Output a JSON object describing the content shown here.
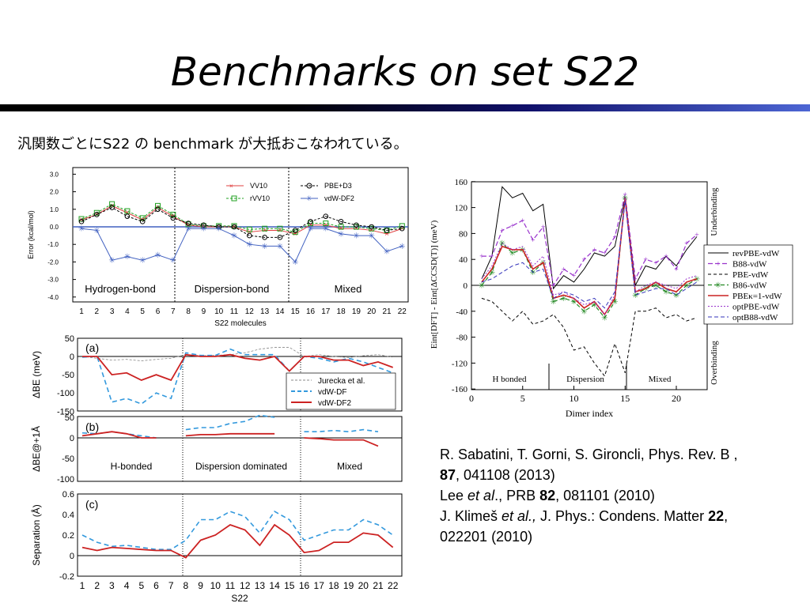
{
  "slide": {
    "title": "Benchmarks on set S22",
    "subtitle": "汎関数ごとにS22 の benchmark が大抵おこなわれている。"
  },
  "figure1": {
    "ylabel": "Error (kcal/mol)",
    "xlabel": "S22 molecules",
    "yticks": [
      "3.0",
      "2.0",
      "1.0",
      "0.0",
      "-1.0",
      "-2.0",
      "-3.0",
      "-4.0"
    ],
    "xticks": [
      "1",
      "2",
      "3",
      "4",
      "5",
      "6",
      "7",
      "8",
      "9",
      "10",
      "11",
      "12",
      "13",
      "14",
      "15",
      "16",
      "17",
      "18",
      "19",
      "20",
      "21",
      "22"
    ],
    "regions": [
      "Hydrogen-bond",
      "Dispersion-bond",
      "Mixed"
    ],
    "legend": [
      "VV10",
      "rVV10",
      "PBE+D3",
      "vdW-DF2"
    ]
  },
  "figure2": {
    "panel_a": {
      "tag": "(a)",
      "ylabel": "ΔBE (meV)",
      "yticks": [
        "50",
        "0",
        "-50",
        "-100",
        "-150"
      ]
    },
    "panel_b": {
      "tag": "(b)",
      "ylabel": "ΔBE@+1Å",
      "yticks": [
        "50",
        "0",
        "-50",
        "-100"
      ],
      "regions": [
        "H-bonded",
        "Dispersion dominated",
        "Mixed"
      ]
    },
    "panel_c": {
      "tag": "(c)",
      "ylabel": "Separation (Å)",
      "yticks": [
        "0.6",
        "0.4",
        "0.2",
        "0",
        "-0.2"
      ]
    },
    "xlabel": "S22",
    "xticks": [
      "1",
      "2",
      "3",
      "4",
      "5",
      "6",
      "7",
      "8",
      "9",
      "10",
      "11",
      "12",
      "13",
      "14",
      "15",
      "16",
      "17",
      "18",
      "19",
      "20",
      "21",
      "22"
    ],
    "legend": [
      "Jurecka et al.",
      "vdW-DF",
      "vdW-DF2"
    ]
  },
  "figure3": {
    "ylabel": "Eint[DFT] - Eint[ΔCCSD(T)] (meV)",
    "xlabel": "Dimer index",
    "yticks": [
      "160",
      "120",
      "80",
      "40",
      "0",
      "-40",
      "-80",
      "-120",
      "-160"
    ],
    "xticks": [
      "0",
      "5",
      "10",
      "15",
      "20"
    ],
    "regions": [
      "H bonded",
      "Dispersion",
      "Mixed"
    ],
    "side_top": "Underbinding",
    "side_bottom": "Overbinding",
    "legend": [
      "revPBE-vdW",
      "B88-vdW",
      "PBE-vdW",
      "B86-vdW",
      "PBEκ=1-vdW",
      "optPBE-vdW",
      "optB88-vdW"
    ]
  },
  "chart_data": [
    {
      "type": "line",
      "xlabel": "S22 molecules",
      "ylabel": "Error (kcal/mol)",
      "ylim": [
        -4,
        3.2
      ],
      "x": [
        1,
        2,
        3,
        4,
        5,
        6,
        7,
        8,
        9,
        10,
        11,
        12,
        13,
        14,
        15,
        16,
        17,
        18,
        19,
        20,
        21,
        22
      ],
      "series": [
        {
          "name": "VV10",
          "color": "#e04040",
          "values": [
            0.4,
            0.7,
            1.2,
            0.8,
            0.4,
            1.1,
            0.6,
            0.1,
            0.0,
            0.0,
            0.0,
            -0.3,
            -0.2,
            -0.2,
            -0.4,
            0.1,
            0.1,
            -0.1,
            -0.1,
            -0.2,
            -0.4,
            -0.1
          ]
        },
        {
          "name": "rVV10",
          "color": "#20a020",
          "values": [
            0.45,
            0.8,
            1.3,
            0.9,
            0.5,
            1.2,
            0.7,
            0.15,
            0.05,
            0.05,
            0.05,
            -0.15,
            -0.1,
            -0.1,
            -0.3,
            0.2,
            0.2,
            0.0,
            0.0,
            -0.1,
            -0.2,
            0.05
          ]
        },
        {
          "name": "PBE+D3",
          "color": "#000000",
          "values": [
            0.3,
            0.7,
            1.1,
            0.6,
            0.3,
            1.0,
            0.5,
            0.2,
            0.1,
            0.0,
            0.0,
            -0.5,
            -0.6,
            -0.6,
            -0.2,
            0.3,
            0.6,
            0.3,
            0.1,
            0.0,
            -0.2,
            -0.1
          ]
        },
        {
          "name": "vdW-DF2",
          "color": "#4060c0",
          "values": [
            -0.1,
            -0.2,
            -1.9,
            -1.7,
            -1.9,
            -1.6,
            -1.9,
            -0.1,
            -0.1,
            -0.1,
            -0.5,
            -1.0,
            -1.1,
            -1.1,
            -2.0,
            -0.1,
            -0.1,
            -0.4,
            -0.5,
            -0.5,
            -1.4,
            -1.1
          ]
        }
      ]
    },
    {
      "type": "line",
      "ylabel": "ΔBE (meV)",
      "ylim": [
        -150,
        50
      ],
      "x": [
        1,
        2,
        3,
        4,
        5,
        6,
        7,
        8,
        9,
        10,
        11,
        12,
        13,
        14,
        15,
        16,
        17,
        18,
        19,
        20,
        21,
        22
      ],
      "series": [
        {
          "name": "Jurecka et al.",
          "color": "#888888",
          "values": [
            0,
            -5,
            -10,
            -8,
            -12,
            -8,
            -5,
            5,
            2,
            3,
            5,
            10,
            20,
            25,
            25,
            0,
            5,
            0,
            -3,
            2,
            5,
            -2
          ]
        },
        {
          "name": "vdW-DF",
          "color": "#3399dd",
          "values": [
            -2,
            0,
            -125,
            -115,
            -130,
            -100,
            -115,
            10,
            3,
            3,
            20,
            5,
            5,
            5,
            -40,
            0,
            -5,
            -15,
            -5,
            -15,
            -30,
            -45
          ]
        },
        {
          "name": "vdW-DF2",
          "color": "#cc2222",
          "values": [
            0,
            0,
            -50,
            -45,
            -65,
            -50,
            -65,
            5,
            0,
            0,
            5,
            -5,
            -10,
            0,
            -40,
            0,
            0,
            -10,
            -10,
            -25,
            -15,
            -30
          ]
        }
      ]
    },
    {
      "type": "line",
      "ylabel": "ΔBE@+1Å",
      "ylim": [
        -100,
        50
      ],
      "x": [
        1,
        2,
        3,
        4,
        5,
        6,
        8,
        9,
        10,
        11,
        12,
        13,
        14,
        16,
        17,
        18,
        19,
        20,
        21
      ],
      "series": [
        {
          "name": "vdW-DF",
          "color": "#3399dd",
          "values": [
            12,
            10,
            15,
            10,
            5,
            0,
            20,
            25,
            25,
            35,
            40,
            55,
            50,
            15,
            15,
            18,
            15,
            20,
            15
          ]
        },
        {
          "name": "vdW-DF2",
          "color": "#cc2222",
          "values": [
            5,
            10,
            15,
            10,
            0,
            0,
            5,
            8,
            8,
            10,
            10,
            10,
            10,
            0,
            -2,
            -5,
            -5,
            -5,
            -20
          ]
        }
      ]
    },
    {
      "type": "line",
      "ylabel": "Separation (Å)",
      "ylim": [
        -0.2,
        0.6
      ],
      "x": [
        1,
        2,
        3,
        4,
        5,
        6,
        7,
        8,
        9,
        10,
        11,
        12,
        13,
        14,
        15,
        16,
        17,
        18,
        19,
        20,
        21,
        22
      ],
      "series": [
        {
          "name": "vdW-DF",
          "color": "#3399dd",
          "values": [
            0.2,
            0.13,
            0.09,
            0.1,
            0.08,
            0.06,
            0.06,
            0.15,
            0.35,
            0.35,
            0.43,
            0.38,
            0.22,
            0.43,
            0.35,
            0.15,
            0.2,
            0.25,
            0.25,
            0.35,
            0.3,
            0.2
          ]
        },
        {
          "name": "vdW-DF2",
          "color": "#cc2222",
          "values": [
            0.08,
            0.05,
            0.08,
            0.07,
            0.06,
            0.05,
            0.05,
            -0.02,
            0.15,
            0.2,
            0.3,
            0.25,
            0.1,
            0.3,
            0.2,
            0.03,
            0.05,
            0.13,
            0.13,
            0.22,
            0.2,
            0.08
          ]
        }
      ]
    },
    {
      "type": "line",
      "xlabel": "Dimer index",
      "ylabel": "Eint[DFT] - Eint[ΔCCSD(T)] (meV)",
      "ylim": [
        -160,
        160
      ],
      "xlim": [
        0,
        23
      ],
      "x": [
        1,
        2,
        3,
        4,
        5,
        6,
        7,
        8,
        9,
        10,
        11,
        12,
        13,
        14,
        15,
        16,
        17,
        18,
        19,
        20,
        21,
        22
      ],
      "series": [
        {
          "name": "revPBE-vdW",
          "color": "#000000",
          "values": [
            10,
            45,
            152,
            135,
            142,
            115,
            125,
            -5,
            15,
            5,
            25,
            50,
            45,
            60,
            135,
            0,
            30,
            25,
            45,
            30,
            55,
            75
          ]
        },
        {
          "name": "B88-vdW",
          "color": "#9933cc",
          "values": [
            45,
            45,
            85,
            92,
            100,
            70,
            90,
            0,
            25,
            15,
            40,
            55,
            50,
            75,
            140,
            10,
            40,
            35,
            45,
            25,
            65,
            78
          ]
        },
        {
          "name": "PBE-vdW",
          "color": "#000000",
          "values": [
            -20,
            -25,
            -40,
            -55,
            -40,
            -60,
            -55,
            -45,
            -65,
            -100,
            -95,
            -120,
            -140,
            -90,
            -135,
            -40,
            -40,
            -35,
            -50,
            -45,
            -55,
            -50
          ]
        },
        {
          "name": "B86-vdW",
          "color": "#228822",
          "values": [
            0,
            20,
            65,
            50,
            55,
            20,
            35,
            -25,
            -20,
            -25,
            -40,
            -30,
            -50,
            -25,
            135,
            -15,
            -5,
            0,
            -10,
            -15,
            0,
            10
          ]
        },
        {
          "name": "PBEκ=1-vdW",
          "color": "#cc2222",
          "values": [
            5,
            25,
            60,
            55,
            55,
            25,
            35,
            -20,
            -15,
            -20,
            -35,
            -25,
            -45,
            -20,
            135,
            -10,
            -5,
            5,
            -5,
            -10,
            5,
            10
          ]
        },
        {
          "name": "optPBE-vdW",
          "color": "#9933cc",
          "values": [
            10,
            30,
            65,
            55,
            60,
            30,
            45,
            -15,
            -10,
            -20,
            -30,
            -25,
            -45,
            -15,
            135,
            -10,
            0,
            5,
            0,
            -5,
            10,
            15
          ]
        },
        {
          "name": "optB88-vdW",
          "color": "#3333bb",
          "values": [
            5,
            10,
            20,
            30,
            35,
            20,
            25,
            -20,
            -10,
            -15,
            -25,
            -20,
            -35,
            -10,
            130,
            -15,
            -10,
            -5,
            -5,
            -15,
            -5,
            5
          ]
        }
      ]
    }
  ],
  "references": [
    {
      "authors": "R. Sabatini, T. Gorni, S. Gironcli, Phys. Rev. B ,",
      "volume": "87",
      "rest": ", 041108 (2013)"
    },
    {
      "authors_a": "Lee ",
      "etal": "et al",
      "authors_b": "., PRB ",
      "volume": "82",
      "rest": ", 081101 (2010)"
    },
    {
      "authors_a": "J. Klimeš ",
      "etal": "et al.,",
      "authors_b": " J. Phys.: Condens. Matter ",
      "volume": "22",
      "rest": ","
    },
    {
      "line": "022201 (2010)"
    }
  ]
}
